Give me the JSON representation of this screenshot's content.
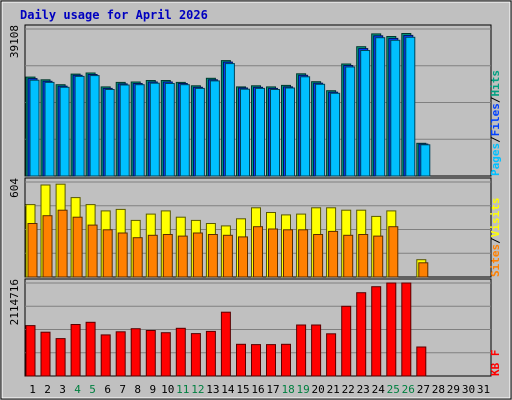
{
  "chart_data": {
    "type": "bar",
    "title": "Daily usage for April 2026",
    "days": [
      "1",
      "2",
      "3",
      "4",
      "5",
      "6",
      "7",
      "8",
      "9",
      "10",
      "11",
      "12",
      "13",
      "14",
      "15",
      "16",
      "17",
      "18",
      "19",
      "20",
      "21",
      "22",
      "23",
      "24",
      "25",
      "26",
      "27",
      "28",
      "29",
      "30",
      "31"
    ],
    "weekend_days": [
      "4",
      "5",
      "11",
      "12",
      "18",
      "19",
      "25",
      "26"
    ],
    "panels": [
      {
        "id": "pages-files-hits",
        "max_label": "39108",
        "ymax": 39108,
        "side_labels": [
          {
            "text": "Pages",
            "color": "#00c0ff"
          },
          {
            "text": "/",
            "color": "#000000"
          },
          {
            "text": "Files",
            "color": "#0040ff"
          },
          {
            "text": "/",
            "color": "#000000"
          },
          {
            "text": "Hits",
            "color": "#00a080"
          }
        ],
        "series": [
          {
            "name": "Hits",
            "color": "#00a080",
            "values": [
              26300,
              25600,
              24300,
              27100,
              27400,
              23700,
              24900,
              25000,
              25400,
              25400,
              24900,
              24000,
              26000,
              30700,
              23700,
              24000,
              23700,
              24100,
              27200,
              25100,
              22700,
              29800,
              34400,
              37800,
              37100,
              37900,
              8700,
              0,
              0,
              0,
              0
            ]
          },
          {
            "name": "Files",
            "color": "#0040ff",
            "values": [
              25900,
              25200,
              23900,
              26800,
              27000,
              23300,
              24500,
              24600,
              25000,
              25000,
              24600,
              23600,
              25600,
              30300,
              23400,
              23600,
              23300,
              23700,
              26800,
              24700,
              22300,
              29400,
              33900,
              37300,
              36600,
              37400,
              8500,
              0,
              0,
              0,
              0
            ]
          },
          {
            "name": "Pages",
            "color": "#00c0ff",
            "values": [
              25500,
              24900,
              23600,
              26500,
              26700,
              23000,
              24200,
              24300,
              24700,
              24600,
              24300,
              23300,
              25300,
              29900,
              23100,
              23300,
              23000,
              23400,
              26400,
              24400,
              22000,
              29000,
              33400,
              36800,
              36100,
              36900,
              8300,
              0,
              0,
              0,
              0
            ]
          }
        ]
      },
      {
        "id": "sites-visits",
        "max_label": "604",
        "ymax": 604,
        "side_labels": [
          {
            "text": "Sites",
            "color": "#ff8000"
          },
          {
            "text": "/",
            "color": "#000000"
          },
          {
            "text": "Visits",
            "color": "#ffff00"
          }
        ],
        "series": [
          {
            "name": "Visits",
            "color": "#ffff00",
            "values": [
              460,
              585,
              590,
              505,
              460,
              420,
              430,
              360,
              400,
              420,
              380,
              360,
              340,
              325,
              370,
              440,
              410,
              395,
              400,
              440,
              440,
              425,
              425,
              385,
              420,
              0,
              110,
              0,
              0,
              0,
              0
            ]
          },
          {
            "name": "Sites",
            "color": "#ff8000",
            "values": [
              340,
              390,
              425,
              380,
              330,
              300,
              280,
              250,
              265,
              270,
              260,
              280,
              270,
              265,
              255,
              320,
              305,
              300,
              300,
              270,
              290,
              265,
              270,
              260,
              320,
              0,
              90,
              0,
              0,
              0,
              0
            ]
          }
        ]
      },
      {
        "id": "kbytes",
        "max_label": "2114716",
        "ymax": 2114716,
        "side_labels": [
          {
            "text": "KB F",
            "color": "#ff0000"
          }
        ],
        "series": [
          {
            "name": "KB F",
            "color": "#ff0000",
            "values": [
              1145000,
              995000,
              850000,
              1170000,
              1220000,
              935000,
              1005000,
              1075000,
              1035000,
              985000,
              1085000,
              965000,
              1015000,
              1450000,
              720000,
              715000,
              715000,
              720000,
              1160000,
              1160000,
              960000,
              1585000,
              1895000,
              2030000,
              2114716,
              2114716,
              660000,
              0,
              0,
              0,
              0
            ]
          }
        ]
      }
    ],
    "grid": true
  }
}
